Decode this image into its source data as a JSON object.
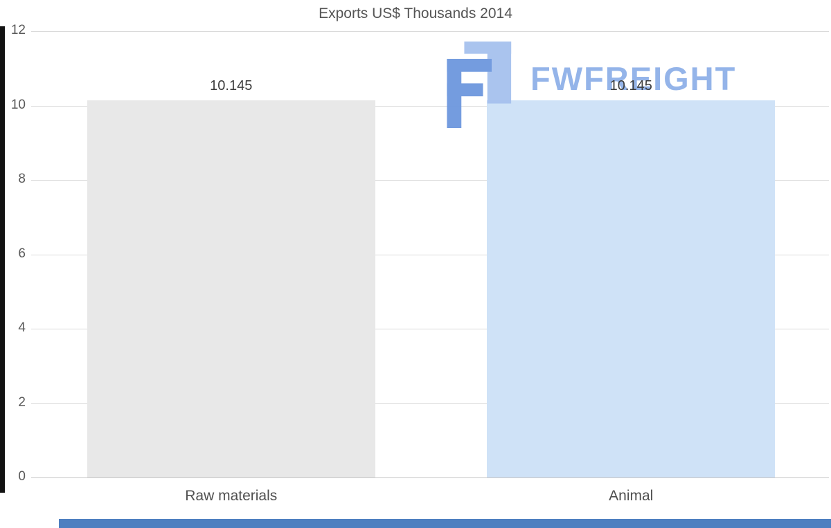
{
  "chart_data": {
    "type": "bar",
    "title": "Exports US$ Thousands 2014",
    "categories": [
      "Raw materials",
      "Animal"
    ],
    "values": [
      10.145,
      10.145
    ],
    "value_labels": [
      "10.145",
      "10.145"
    ],
    "bar_colors": [
      "#e8e8e8",
      "#cfe2f7"
    ],
    "xlabel": "",
    "ylabel": "",
    "ylim": [
      0,
      12
    ],
    "yticks": [
      12,
      10,
      8,
      6,
      4,
      2,
      0
    ],
    "grid": true,
    "legend": "none"
  },
  "watermark": {
    "text": "FWFREIGHT",
    "text_color": "#8fb1e8",
    "icon_dark_color": "#6d97de",
    "icon_light_color": "#a6c1ee"
  },
  "decor": {
    "left_strip_color": "#121212",
    "bottom_strip_color": "#4d7fc0"
  }
}
